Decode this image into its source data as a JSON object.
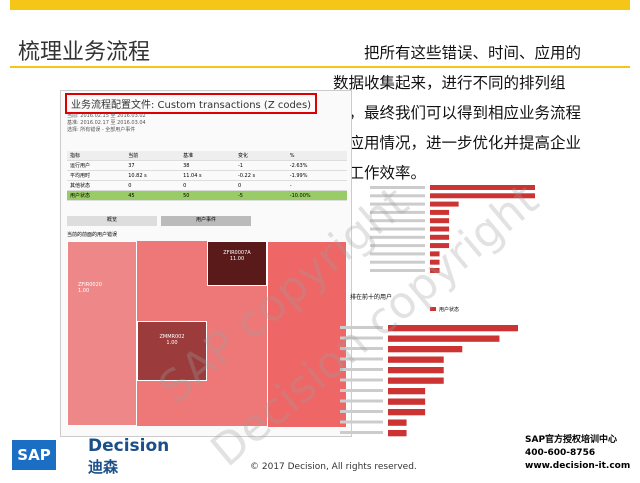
{
  "slide": {
    "title": "梳理业务流程",
    "paragraph": "把所有这些错误、时间、应用的数据收集起来，进行不同的排列组合，最终我们可以得到相应业务流程的应用情况，进一步优化并提高企业的工作效率。",
    "callout": "业务流程配置文件: Custom transactions (Z codes)",
    "meta": [
      "当前: 2016.02.15 至 2016.03.02",
      "基准: 2016.02.17 至 2016.03.04",
      "选择: 所有错误 - 全部用户事件"
    ],
    "table": {
      "header": [
        "指标",
        "当前",
        "基准",
        "变化",
        "%"
      ],
      "rows": [
        [
          "运行用户",
          "37",
          "38",
          "-1",
          "-2.63%"
        ],
        [
          "平均用时",
          "10.82 s",
          "11.04 s",
          "-0.22 s",
          "-1.99%"
        ],
        [
          "其他状态",
          "0",
          "0",
          "0",
          "-"
        ],
        [
          "用户状态",
          "45",
          "50",
          "-5",
          "-10.00%"
        ]
      ]
    },
    "tabs": [
      "概览",
      "用户事件"
    ],
    "treemap_title": "当前的前面的用户错误",
    "treemap_cells": [
      "ZFIR0007A",
      "11.00",
      "ZFIR0020",
      "1.00",
      "ZMMR002",
      "1.00"
    ],
    "chart1": {
      "type": "bar",
      "values": [
        11,
        11,
        3,
        2,
        2,
        2,
        2,
        2,
        1,
        1,
        1
      ],
      "xlim": [
        0,
        11
      ]
    },
    "chart2": {
      "type": "bar",
      "legend": "用户状态",
      "title": "排在前十的用户",
      "values": [
        7,
        6,
        4,
        3,
        3,
        3,
        2,
        2,
        2,
        1,
        1
      ],
      "xlim": [
        0,
        7
      ]
    },
    "watermark": [
      "SAP copyright",
      "Decision copyright"
    ],
    "footer": {
      "copyright": "© 2017 Decision, All rights reserved.",
      "brand": "Decision",
      "brand_cn": "迪森",
      "sap": "SAP",
      "center": "SAP官方授权培训中心",
      "phone": "400-600-8756",
      "web": "www.decision-it.com"
    }
  }
}
